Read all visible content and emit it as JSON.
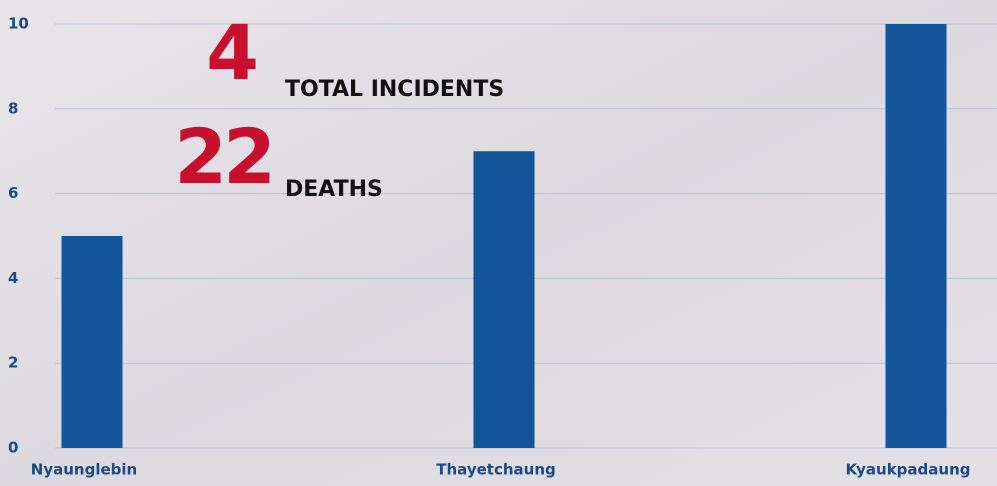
{
  "chart_data": {
    "type": "bar",
    "categories": [
      "Nyaunglebin",
      "Thayetchaung",
      "Kyaukpadaung"
    ],
    "values": [
      5,
      7,
      10
    ],
    "color": "#12559a",
    "ylim": [
      0,
      10
    ],
    "yticks": [
      0,
      2,
      4,
      6,
      8,
      10
    ],
    "grid": true,
    "highlights": [
      {
        "number": 4,
        "label": "TOTAL INCIDENTS"
      },
      {
        "number": 22,
        "label": "DEATHS"
      }
    ]
  }
}
